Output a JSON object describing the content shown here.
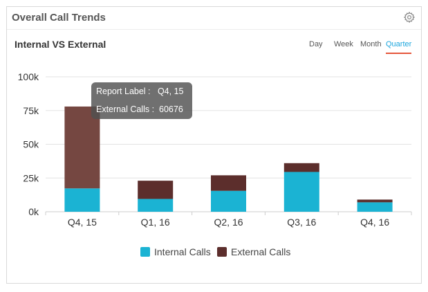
{
  "widget": {
    "title": "Overall Call Trends",
    "settings_icon": "gear-icon"
  },
  "panel": {
    "subtitle": "Internal VS External",
    "tabs": [
      {
        "label": "Day",
        "active": false
      },
      {
        "label": "Week",
        "active": false
      },
      {
        "label": "Month",
        "active": false
      },
      {
        "label": "Quarter",
        "active": true
      }
    ]
  },
  "tooltip": {
    "label_key": "Report Label :",
    "label_value": "Q4, 15",
    "value_key": "External Calls :",
    "value_value": "60676"
  },
  "colors": {
    "internal": "#1bb3d3",
    "external": "#5c2e2c",
    "external_highlight": "#754741",
    "accent": "#1aa5dd",
    "tab_underline": "#e5553a"
  },
  "chart_data": {
    "type": "bar",
    "stacked": true,
    "categories": [
      "Q4, 15",
      "Q1, 16",
      "Q2, 16",
      "Q3, 16",
      "Q4, 16"
    ],
    "series": [
      {
        "name": "Internal Calls",
        "values": [
          17300,
          9500,
          15500,
          29500,
          7000
        ]
      },
      {
        "name": "External Calls",
        "values": [
          60676,
          13500,
          11500,
          6500,
          2000
        ]
      }
    ],
    "y_ticks": [
      0,
      25000,
      50000,
      75000,
      100000
    ],
    "y_tick_labels": [
      "0k",
      "25k",
      "50k",
      "75k",
      "100k"
    ],
    "ylim": [
      0,
      100000
    ],
    "grid": true,
    "legend": "bottom-center",
    "highlighted": {
      "category": "Q4, 15",
      "series": "External Calls"
    }
  }
}
